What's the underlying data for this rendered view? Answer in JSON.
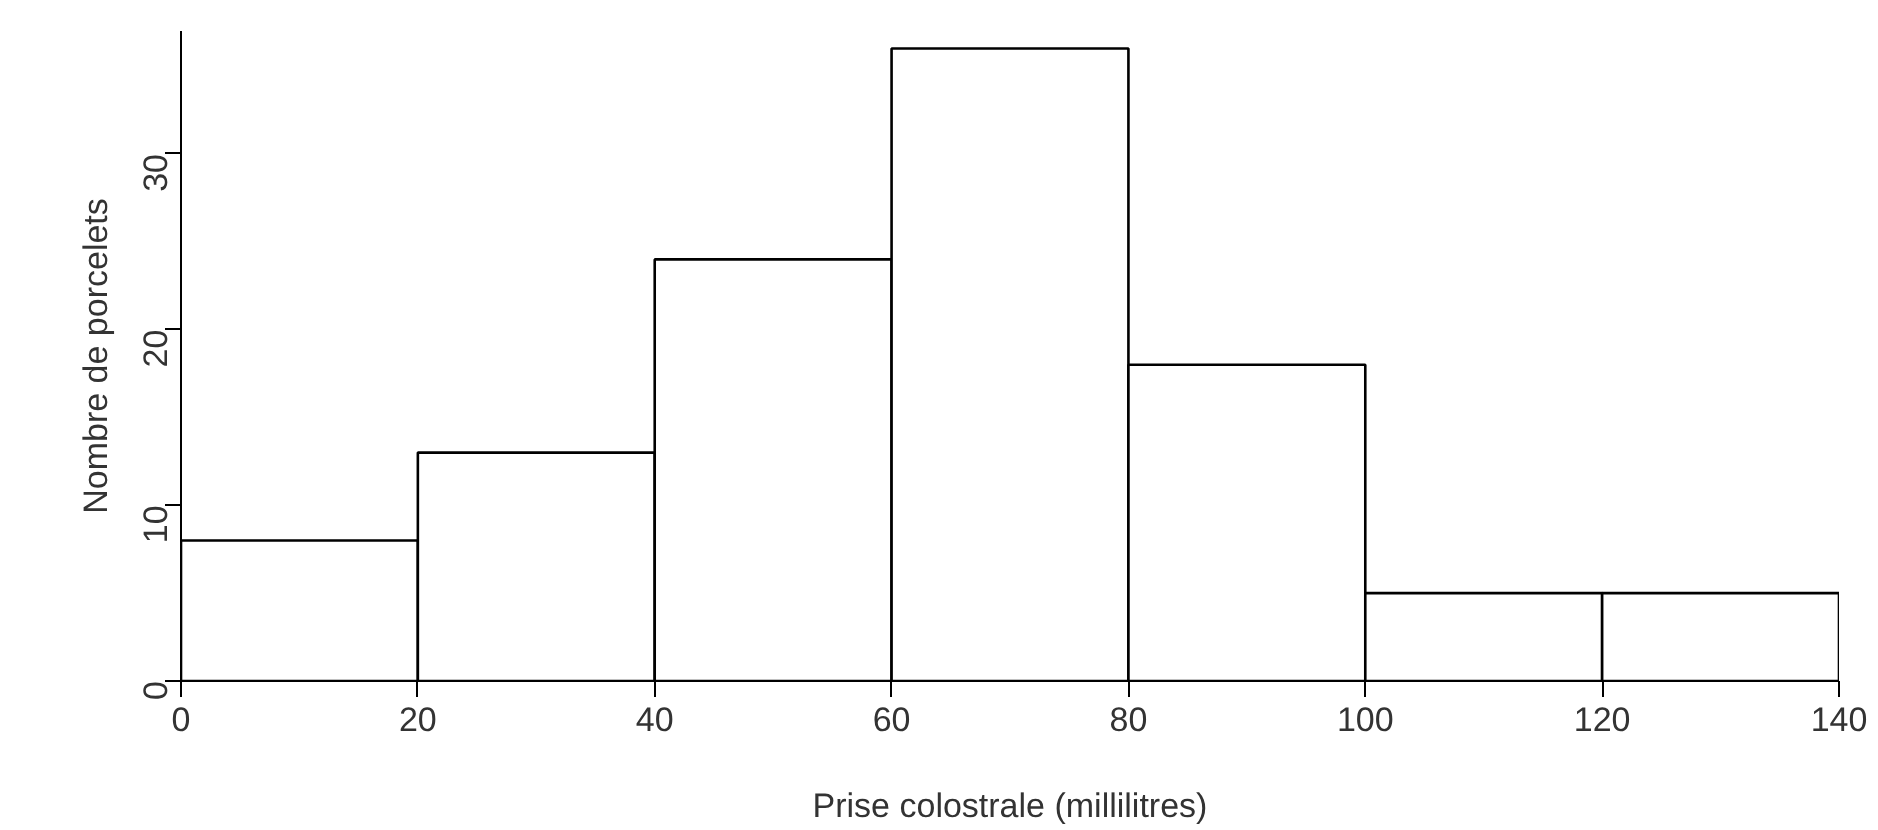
{
  "chart_data": {
    "type": "histogram",
    "xlabel": "Prise colostrale (millilitres)",
    "ylabel": "Nombre de porcelets",
    "bins": [
      0,
      20,
      40,
      60,
      80,
      100,
      120,
      140
    ],
    "values": [
      8,
      13,
      24,
      36,
      18,
      5,
      5
    ],
    "color": "#ffffff",
    "xlim": [
      0,
      140
    ],
    "xticks": [
      0,
      20,
      40,
      60,
      80,
      100,
      120,
      140
    ],
    "ylim": [
      0,
      37
    ],
    "yticks": [
      0,
      10,
      20,
      30
    ],
    "grid": false
  }
}
